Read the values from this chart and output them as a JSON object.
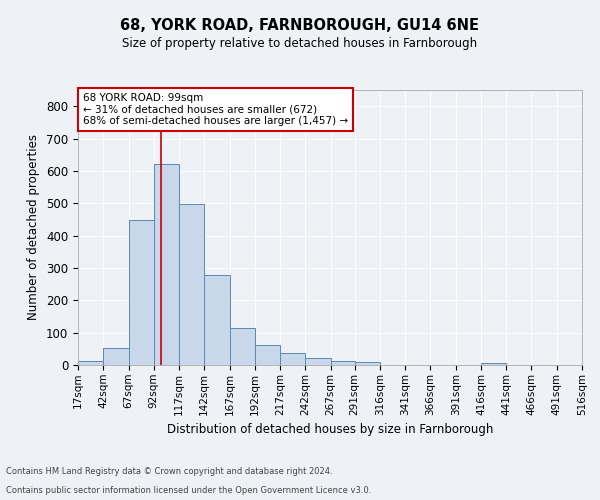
{
  "title1": "68, YORK ROAD, FARNBOROUGH, GU14 6NE",
  "title2": "Size of property relative to detached houses in Farnborough",
  "xlabel": "Distribution of detached houses by size in Farnborough",
  "ylabel": "Number of detached properties",
  "footer1": "Contains HM Land Registry data © Crown copyright and database right 2024.",
  "footer2": "Contains public sector information licensed under the Open Government Licence v3.0.",
  "annotation_line1": "68 YORK ROAD: 99sqm",
  "annotation_line2": "← 31% of detached houses are smaller (672)",
  "annotation_line3": "68% of semi-detached houses are larger (1,457) →",
  "bar_color": "#c8d8ea",
  "bar_edge_color": "#5a8ab0",
  "marker_color": "#cc0000",
  "marker_x": 99,
  "bin_edges": [
    17,
    42,
    67,
    92,
    117,
    142,
    167,
    192,
    217,
    242,
    267,
    291,
    316,
    341,
    366,
    391,
    416,
    441,
    466,
    491,
    516
  ],
  "bar_heights": [
    12,
    52,
    447,
    622,
    499,
    278,
    115,
    62,
    37,
    22,
    12,
    9,
    0,
    0,
    0,
    0,
    7,
    0,
    0,
    0
  ],
  "ylim": [
    0,
    850
  ],
  "yticks": [
    0,
    100,
    200,
    300,
    400,
    500,
    600,
    700,
    800
  ],
  "xlim": [
    17,
    516
  ],
  "bg_color": "#eef2f7",
  "plot_bg_color": "#eef2f7",
  "grid_color": "#ffffff",
  "annotation_box_color": "#ffffff",
  "annotation_box_edge": "#cc0000"
}
